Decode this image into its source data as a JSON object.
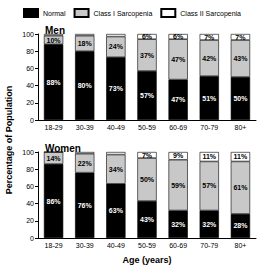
{
  "chart_data": [
    {
      "type": "bar",
      "title": "Men",
      "ylabel": "Percentage of Population",
      "legend": "top",
      "stacked": true,
      "data_labels": true,
      "grid": false,
      "categories": [
        "18-29",
        "30-39",
        "40-49",
        "50-59",
        "60-69",
        "70-79",
        "80+"
      ],
      "ylim": [
        0,
        100
      ],
      "yticks": [
        0,
        20,
        40,
        60,
        80,
        100
      ],
      "series": [
        {
          "name": "Normal",
          "color": "#000000",
          "values": [
            88,
            80,
            73,
            57,
            47,
            51,
            50
          ],
          "value_labels": [
            "88%",
            "80%",
            "73%",
            "57%",
            "47%",
            "51%",
            "50%"
          ]
        },
        {
          "name": "Class I Sarcopenia",
          "color": "#c8c8c8",
          "values": [
            10,
            18,
            24,
            37,
            47,
            42,
            43
          ],
          "value_labels": [
            "10%",
            "18%",
            "24%",
            "37%",
            "47%",
            "42%",
            "43%"
          ]
        },
        {
          "name": "Class II Sarcopenia",
          "color": "#ffffff",
          "values": [
            2,
            2,
            3,
            6,
            6,
            7,
            7
          ],
          "value_labels": [
            null,
            null,
            null,
            "6%",
            "6%",
            "7%",
            "7%"
          ]
        }
      ]
    },
    {
      "type": "bar",
      "title": "Women",
      "xlabel": "Age (years)",
      "stacked": true,
      "data_labels": true,
      "grid": false,
      "categories": [
        "18-29",
        "30-39",
        "40-49",
        "50-59",
        "60-69",
        "70-79",
        "80+"
      ],
      "ylim": [
        0,
        100
      ],
      "yticks": [
        0,
        20,
        40,
        60,
        80,
        100
      ],
      "series": [
        {
          "name": "Normal",
          "color": "#000000",
          "values": [
            86,
            76,
            63,
            43,
            32,
            32,
            28
          ],
          "value_labels": [
            "86%",
            "76%",
            "63%",
            "43%",
            "32%",
            "32%",
            "28%"
          ]
        },
        {
          "name": "Class I Sarcopenia",
          "color": "#c8c8c8",
          "values": [
            14,
            22,
            34,
            50,
            59,
            57,
            61
          ],
          "value_labels": [
            "14%",
            "22%",
            "34%",
            "50%",
            "59%",
            "57%",
            "61%"
          ]
        },
        {
          "name": "Class II Sarcopenia",
          "color": "#ffffff",
          "values": [
            0,
            2,
            3,
            7,
            9,
            11,
            11
          ],
          "value_labels": [
            null,
            null,
            null,
            "7%",
            "9%",
            "11%",
            "11%"
          ]
        }
      ]
    }
  ]
}
